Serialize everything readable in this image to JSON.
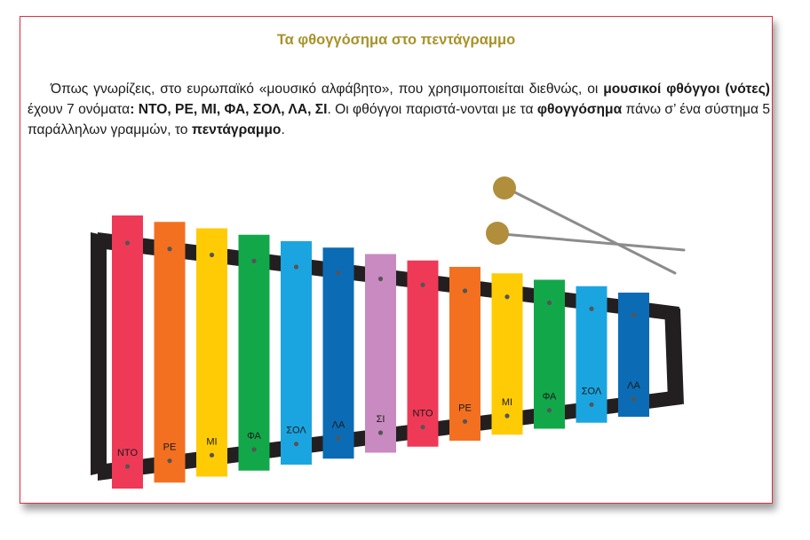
{
  "title": "Τα φθογγόσημα στο πεντάγραμμο",
  "paragraph": {
    "s1": "Όπως γνωρίζεις, στο ευρωπαϊκό «μουσικό αλφάβητο», που χρησιμοποιείται διεθνώς, οι ",
    "b1": "μουσικοί φθόγγοι (νότες)",
    "s2": " έχουν 7 ονόματα",
    "b2": ": ΝΤΟ, ΡΕ, ΜΙ, ΦΑ, ΣΟΛ, ΛΑ, ΣΙ",
    "s3": ". Οι φθόγγοι παριστά-νονται με τα ",
    "b3": "φθογγόσημα",
    "s4": " πάνω σ’ ένα σύστημα 5 παράλληλων γραμμών, το ",
    "b4": "πεντάγραμμο",
    "s5": "."
  },
  "xylophone": {
    "bars": [
      {
        "label": "ΝΤΟ",
        "color": "#ee3a57"
      },
      {
        "label": "ΡΕ",
        "color": "#f37021"
      },
      {
        "label": "ΜΙ",
        "color": "#ffcb05"
      },
      {
        "label": "ΦΑ",
        "color": "#12a84a"
      },
      {
        "label": "ΣΟΛ",
        "color": "#1ba5e0"
      },
      {
        "label": "ΛΑ",
        "color": "#0b6cb5"
      },
      {
        "label": "ΣΙ",
        "color": "#c88ac0"
      },
      {
        "label": "ΝΤΟ",
        "color": "#ee3a57"
      },
      {
        "label": "ΡΕ",
        "color": "#f37021"
      },
      {
        "label": "ΜΙ",
        "color": "#ffcb05"
      },
      {
        "label": "ΦΑ",
        "color": "#12a84a"
      },
      {
        "label": "ΣΟΛ",
        "color": "#1ba5e0"
      },
      {
        "label": "ΛΑ",
        "color": "#0b6cb5"
      }
    ],
    "frame_color": "#231f20",
    "mallet_head_color": "#b08e3c",
    "mallet_stick_color": "#8c8c8c"
  }
}
